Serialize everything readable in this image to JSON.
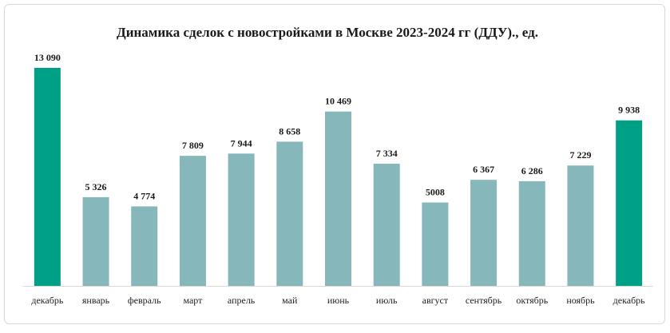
{
  "chart_data": {
    "type": "bar",
    "title": "Динамика сделок с новостройками в Москве 2023-2024 гг (ДДУ)., ед.",
    "categories": [
      "декабрь",
      "январь",
      "февраль",
      "март",
      "апрель",
      "май",
      "июнь",
      "июль",
      "август",
      "сентябрь",
      "октябрь",
      "ноябрь",
      "декабрь"
    ],
    "values": [
      13090,
      5326,
      4774,
      7809,
      7944,
      8658,
      10469,
      7334,
      5008,
      6367,
      6286,
      7229,
      9938
    ],
    "value_labels": [
      "13 090",
      "5 326",
      "4 774",
      "7 809",
      "7 944",
      "8 658",
      "10 469",
      "7 334",
      "5008",
      "6 367",
      "6 286",
      "7 229",
      "9 938"
    ],
    "colors": [
      "#00a087",
      "#86b7bb",
      "#86b7bb",
      "#86b7bb",
      "#86b7bb",
      "#86b7bb",
      "#86b7bb",
      "#86b7bb",
      "#86b7bb",
      "#86b7bb",
      "#86b7bb",
      "#86b7bb",
      "#00a087"
    ]
  }
}
